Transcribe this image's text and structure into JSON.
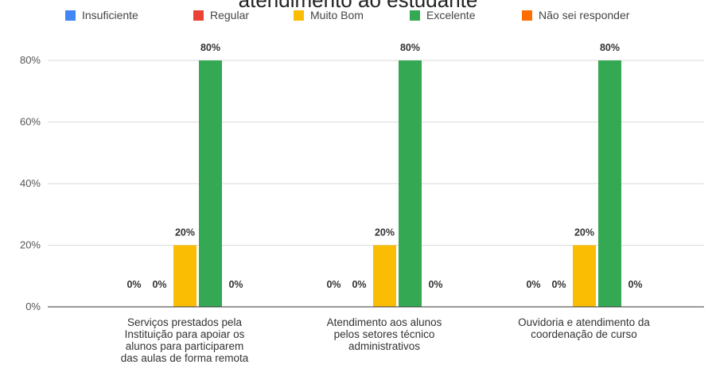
{
  "chart_data": {
    "type": "bar",
    "title": "atendimento ao estudante",
    "categories": [
      [
        "Serviços prestados pela",
        "Instituição para apoiar os",
        "alunos para participarem",
        "das aulas de forma remota"
      ],
      [
        "Atendimento aos alunos",
        "pelos setores técnico",
        "administrativos"
      ],
      [
        "Ouvidoria e atendimento da",
        "coordenação de curso"
      ]
    ],
    "series": [
      {
        "name": "Insuficiente",
        "color": "#4285F4",
        "values": [
          0,
          0,
          0
        ],
        "labels": [
          "0%",
          "0%",
          "0%"
        ]
      },
      {
        "name": "Regular",
        "color": "#EA4335",
        "values": [
          0,
          0,
          0
        ],
        "labels": [
          "0%",
          "0%",
          "0%"
        ]
      },
      {
        "name": "Muito Bom",
        "color": "#FBBC04",
        "values": [
          20,
          20,
          20
        ],
        "labels": [
          "20%",
          "20%",
          "20%"
        ]
      },
      {
        "name": "Excelente",
        "color": "#34A853",
        "values": [
          80,
          80,
          80
        ],
        "labels": [
          "80%",
          "80%",
          "80%"
        ]
      },
      {
        "name": "Não sei responder",
        "color": "#FF6D01",
        "values": [
          0,
          0,
          0
        ],
        "labels": [
          "0%",
          "0%",
          "0%"
        ]
      }
    ],
    "ylim": [
      0,
      80
    ],
    "yticks": [
      0,
      20,
      40,
      60,
      80
    ],
    "ytick_labels": [
      "0%",
      "20%",
      "40%",
      "60%",
      "80%"
    ],
    "grid": true,
    "legend_position": "top"
  }
}
